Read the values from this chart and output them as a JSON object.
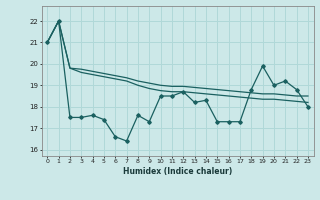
{
  "xlabel": "Humidex (Indice chaleur)",
  "xlim": [
    -0.5,
    23.5
  ],
  "ylim": [
    15.7,
    22.7
  ],
  "yticks": [
    16,
    17,
    18,
    19,
    20,
    21,
    22
  ],
  "xticks": [
    0,
    1,
    2,
    3,
    4,
    5,
    6,
    7,
    8,
    9,
    10,
    11,
    12,
    13,
    14,
    15,
    16,
    17,
    18,
    19,
    20,
    21,
    22,
    23
  ],
  "bg_color": "#cce8e8",
  "line_color": "#1a6060",
  "grid_color": "#b0d8d8",
  "line_top_x": [
    0,
    1,
    2,
    3,
    4,
    5,
    6,
    7,
    8,
    9,
    10,
    11,
    12,
    13,
    14,
    15,
    16,
    17,
    18,
    19,
    20,
    21,
    22,
    23
  ],
  "line_top_y": [
    21.0,
    22.0,
    19.8,
    19.75,
    19.65,
    19.55,
    19.45,
    19.35,
    19.2,
    19.1,
    19.0,
    18.95,
    18.95,
    18.9,
    18.85,
    18.8,
    18.75,
    18.7,
    18.65,
    18.6,
    18.6,
    18.55,
    18.5,
    18.5
  ],
  "line_mid_x": [
    0,
    1,
    2,
    3,
    4,
    5,
    6,
    7,
    8,
    9,
    10,
    11,
    12,
    13,
    14,
    15,
    16,
    17,
    18,
    19,
    20,
    21,
    22,
    23
  ],
  "line_mid_y": [
    21.0,
    22.0,
    19.8,
    19.6,
    19.5,
    19.4,
    19.3,
    19.2,
    19.0,
    18.85,
    18.75,
    18.7,
    18.7,
    18.65,
    18.6,
    18.55,
    18.5,
    18.45,
    18.4,
    18.35,
    18.35,
    18.3,
    18.25,
    18.2
  ],
  "line_jag_x": [
    0,
    1,
    2,
    3,
    4,
    5,
    6,
    7,
    8,
    9,
    10,
    11,
    12,
    13,
    14,
    15,
    16,
    17,
    18,
    19,
    20,
    21,
    22,
    23
  ],
  "line_jag_y": [
    21.0,
    22.0,
    17.5,
    17.5,
    17.6,
    17.4,
    16.6,
    16.4,
    17.6,
    17.3,
    18.5,
    18.5,
    18.7,
    18.2,
    18.3,
    17.3,
    17.3,
    17.3,
    18.8,
    19.9,
    19.0,
    19.2,
    18.8,
    18.0
  ]
}
